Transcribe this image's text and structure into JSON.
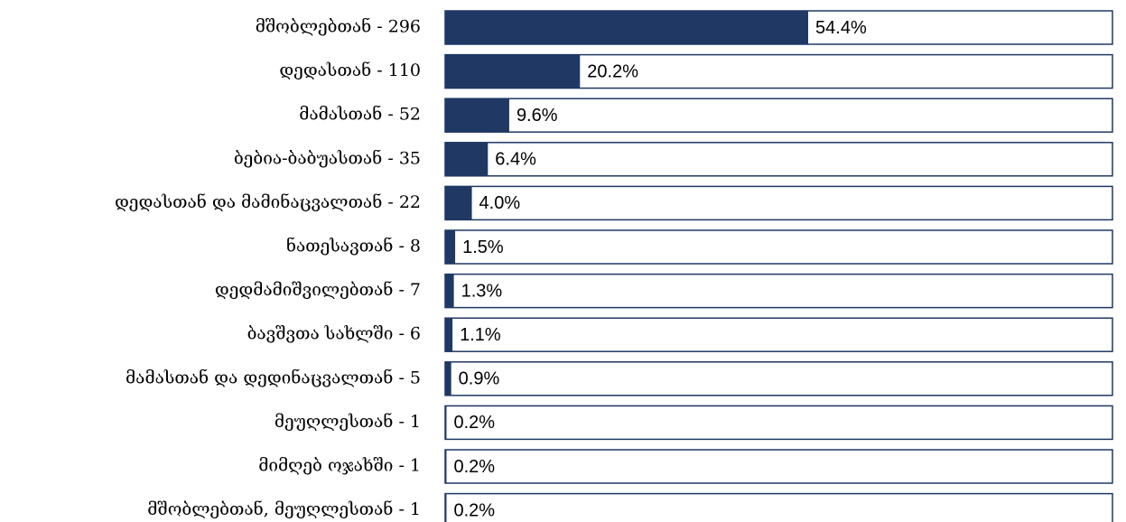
{
  "chart_data": {
    "type": "bar",
    "orientation": "horizontal",
    "categories": [
      "მშობლებთან - 296",
      "დედასთან - 110",
      "მამასთან - 52",
      "ბებია-ბაბუასთან - 35",
      "დედასთან და მამინაცვალთან - 22",
      "ნათესავთან - 8",
      "დედმამიშვილებთან - 7",
      "ბავშვთა სახლში - 6",
      "მამასთან და დედინაცვალთან - 5",
      "მეუღლესთან - 1",
      "მიმღებ ოჯახში - 1",
      "მშობლებთან, მეუღლესთან - 1"
    ],
    "values": [
      54.4,
      20.2,
      9.6,
      6.4,
      4.0,
      1.5,
      1.3,
      1.1,
      0.9,
      0.2,
      0.2,
      0.2
    ],
    "value_labels": [
      "54.4%",
      "20.2%",
      "9.6%",
      "6.4%",
      "4.0%",
      "1.5%",
      "1.3%",
      "1.1%",
      "0.9%",
      "0.2%",
      "0.2%",
      "0.2%"
    ],
    "color": "#1f3864",
    "xlim": [
      0,
      100
    ]
  }
}
